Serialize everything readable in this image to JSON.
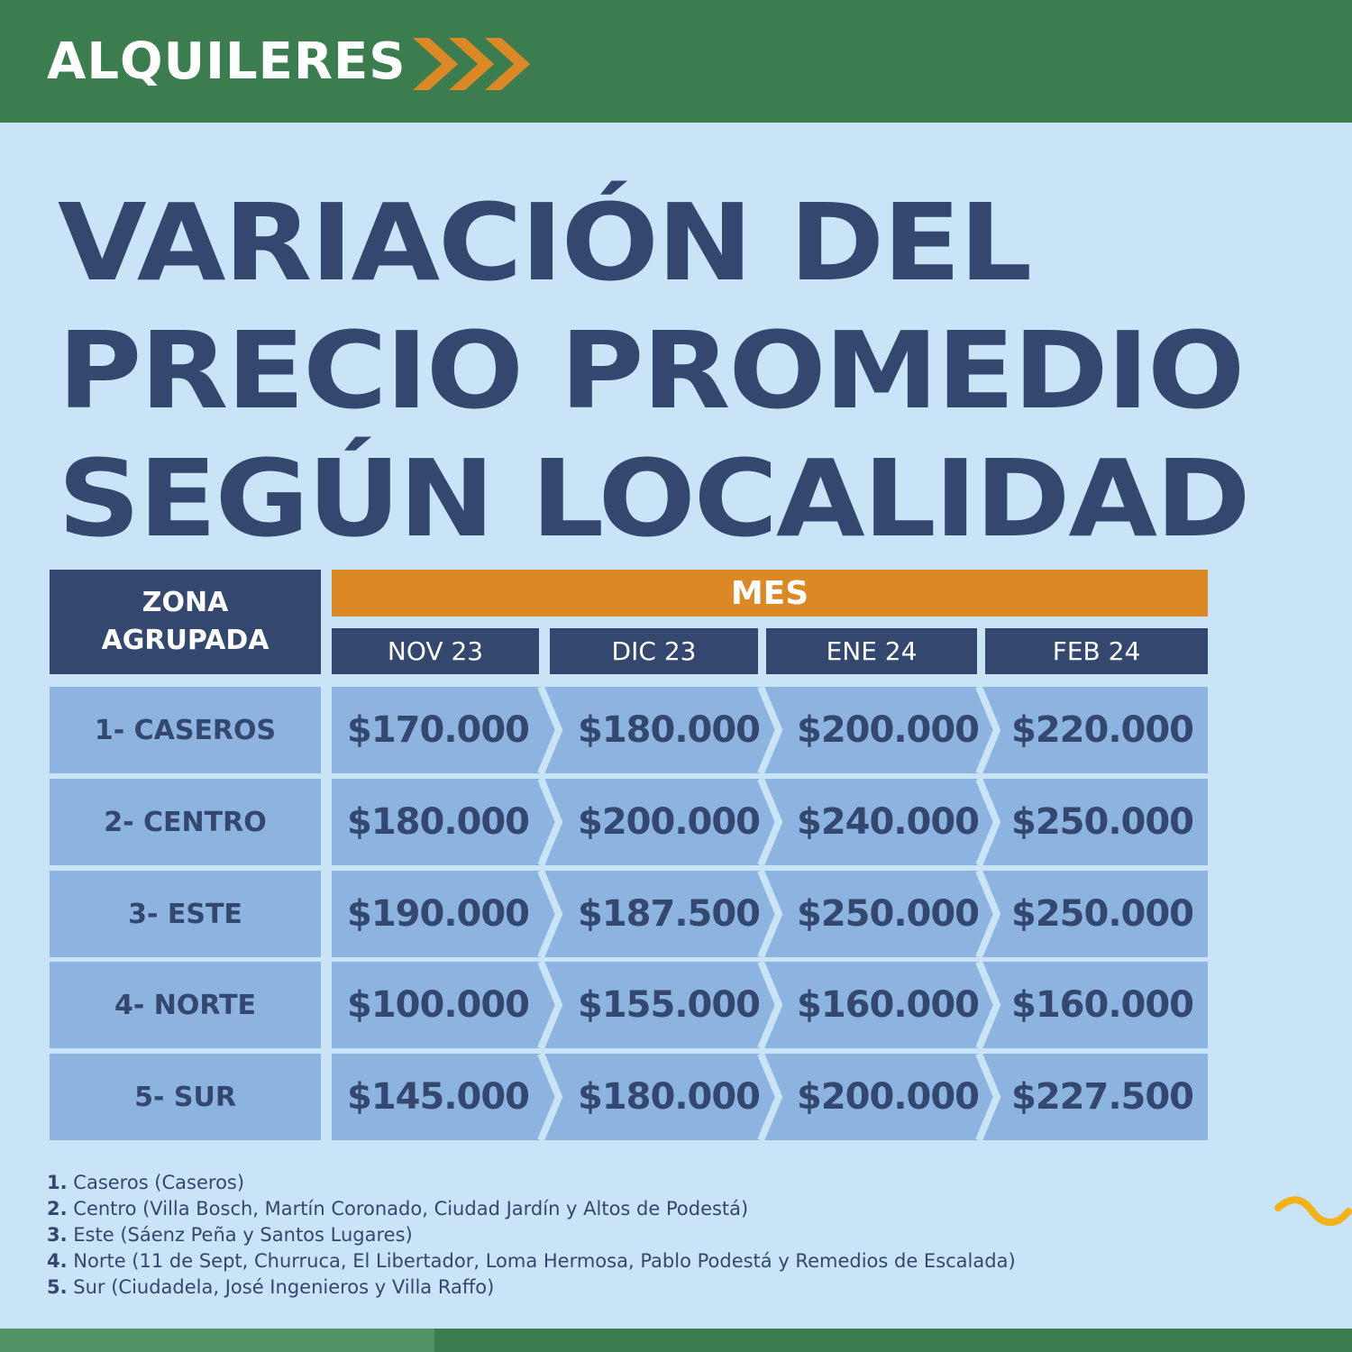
{
  "header": {
    "section_label": "ALQUILERES",
    "chevron_icon": "triple-chevron-right-icon",
    "chevron_color": "#db8826",
    "background_color": "#3c7d50"
  },
  "title": {
    "line1": "VARIACIÓN DEL",
    "line2": "PRECIO PROMEDIO",
    "line3": "SEGÚN LOCALIDAD",
    "color": "#33476f"
  },
  "table": {
    "zone_header": "ZONA AGRUPADA",
    "month_group_header": "MES",
    "months": [
      "NOV 23",
      "DIC 23",
      "ENE 24",
      "FEB 24"
    ],
    "rows": [
      {
        "zone": "1- CASEROS",
        "prices": [
          "$170.000",
          "$180.000",
          "$200.000",
          "$220.000"
        ]
      },
      {
        "zone": "2- CENTRO",
        "prices": [
          "$180.000",
          "$200.000",
          "$240.000",
          "$250.000"
        ]
      },
      {
        "zone": "3- ESTE",
        "prices": [
          "$190.000",
          "$187.500",
          "$250.000",
          "$250.000"
        ]
      },
      {
        "zone": "4- NORTE",
        "prices": [
          "$100.000",
          "$155.000",
          "$160.000",
          "$160.000"
        ]
      },
      {
        "zone": "5- SUR",
        "prices": [
          "$145.000",
          "$180.000",
          "$200.000",
          "$227.500"
        ]
      }
    ],
    "colors": {
      "header_dark": "#33476f",
      "header_accent": "#db8826",
      "cell_fill": "#8db3e0",
      "text_dark": "#33476f"
    }
  },
  "notes": [
    {
      "num": "1.",
      "text": "Caseros (Caseros)"
    },
    {
      "num": "2.",
      "text": "Centro (Villa Bosch, Martín Coronado, Ciudad Jardín y Altos de Podestá)"
    },
    {
      "num": "3.",
      "text": "Este (Sáenz Peña y Santos Lugares)"
    },
    {
      "num": "4.",
      "text": "Norte (11 de Sept, Churruca, El Libertador, Loma Hermosa, Pablo Podestá y Remedios de Escalada)"
    },
    {
      "num": "5.",
      "text": "Sur (Ciudadela, José Ingenieros y Villa Raffo)"
    }
  ],
  "decor": {
    "wave_icon": "wave-squiggle-icon",
    "wave_color": "#f2b21b"
  }
}
